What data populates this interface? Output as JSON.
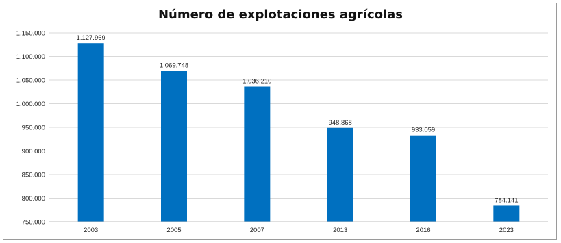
{
  "chart_data": {
    "type": "bar",
    "title": "Número de explotaciones agrícolas",
    "categories": [
      "2003",
      "2005",
      "2007",
      "2013",
      "2016",
      "2023"
    ],
    "values": [
      1127969,
      1069748,
      1036210,
      948868,
      933059,
      784141
    ],
    "data_labels": [
      "1.127.969",
      "1.069.748",
      "1.036.210",
      "948.868",
      "933.059",
      "784.141"
    ],
    "y_ticks": [
      750000,
      800000,
      850000,
      900000,
      950000,
      1000000,
      1050000,
      1100000,
      1150000
    ],
    "y_tick_labels": [
      "750.000",
      "800.000",
      "850.000",
      "900.000",
      "950.000",
      "1.000.000",
      "1.050.000",
      "1.100.000",
      "1.150.000"
    ],
    "ylim": [
      750000,
      1150000
    ],
    "xlabel": "",
    "ylabel": "",
    "grid": true,
    "legend": "none",
    "bar_color": "#0070c0",
    "grid_color": "#d9d9d9"
  }
}
